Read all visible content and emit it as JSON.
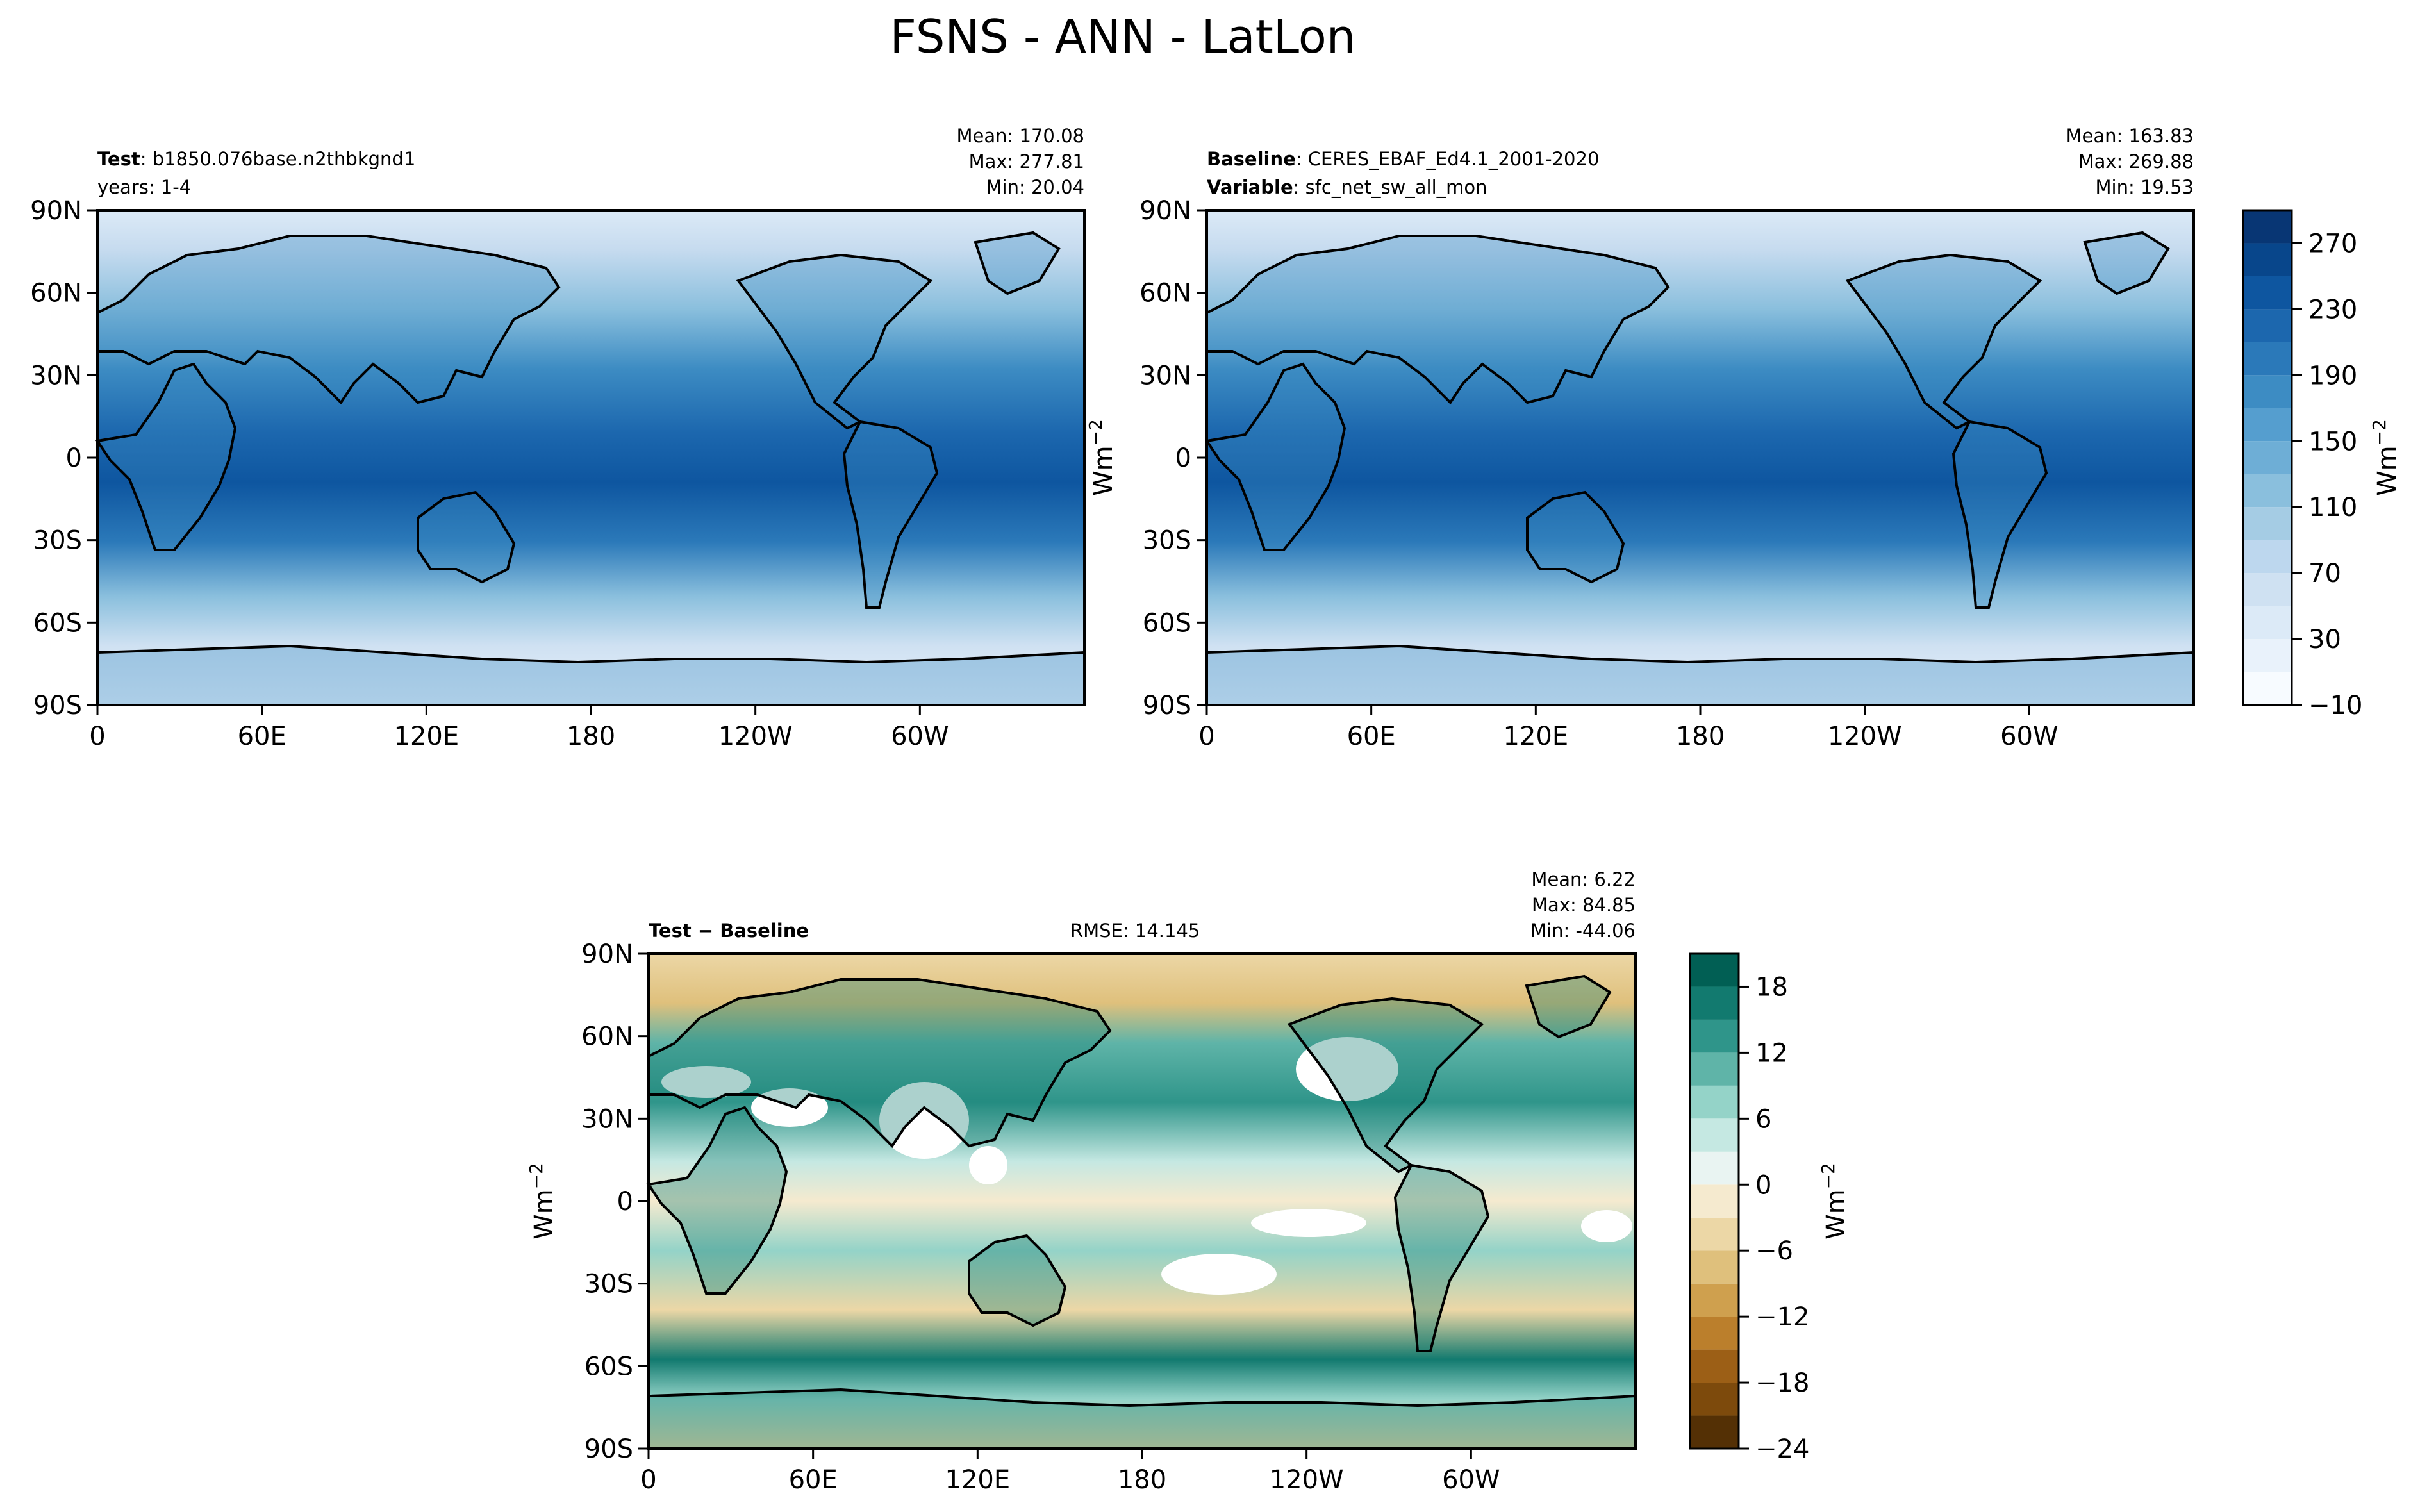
{
  "chart_data": {
    "type": "heatmap",
    "title": "FSNS - ANN - LatLon",
    "lat_ticks": [
      "90N",
      "60N",
      "30N",
      "0",
      "30S",
      "60S",
      "90S"
    ],
    "lon_ticks": [
      "0",
      "60E",
      "120E",
      "180",
      "120W",
      "60W"
    ],
    "unit": "Wm",
    "unit_exp": "−2",
    "panels": [
      {
        "name": "test",
        "label_bold": "Test",
        "label_text": ": b1850.076base.n2thbkgnd1",
        "label_line2": "years: 1-4",
        "mean": "Mean: 170.08",
        "max": "Max: 277.81",
        "min": "Min: 20.04"
      },
      {
        "name": "baseline",
        "label_bold": "Baseline",
        "label_text": ": CERES_EBAF_Ed4.1_2001-2020",
        "label_bold2": "Variable",
        "label_text2": ": sfc_net_sw_all_mon",
        "mean": "Mean: 163.83",
        "max": "Max: 269.88",
        "min": "Min: 19.53"
      },
      {
        "name": "diff",
        "label_bold": "Test − Baseline",
        "rmse": "RMSE: 14.145",
        "mean": "Mean:  6.22",
        "max": "Max: 84.85",
        "min": "Min: -44.06"
      }
    ],
    "colorbar_main": {
      "ticks": [
        "270",
        "230",
        "190",
        "150",
        "110",
        "70",
        "30",
        "−10"
      ],
      "levels": [
        -10,
        10,
        30,
        50,
        70,
        90,
        110,
        130,
        150,
        170,
        190,
        210,
        230,
        250,
        270,
        290
      ],
      "colors": [
        "#f7fbff",
        "#e9f2fb",
        "#dceaf7",
        "#cfe1f2",
        "#bdd7ee",
        "#a5cce4",
        "#8abfdd",
        "#6eaed6",
        "#559ecf",
        "#3d8cc3",
        "#2b79b9",
        "#1c67ae",
        "#0e56a0",
        "#08468b",
        "#083674"
      ]
    },
    "colorbar_diff": {
      "ticks": [
        "18",
        "12",
        "6",
        "0",
        "−6",
        "−12",
        "−18",
        "−24"
      ],
      "levels": [
        -24,
        -21,
        -18,
        -15,
        -12,
        -9,
        -6,
        -3,
        0,
        3,
        6,
        9,
        12,
        15,
        18,
        21
      ],
      "colors": [
        "#543005",
        "#7d4a0c",
        "#9c5f16",
        "#bb7f2c",
        "#cfa04e",
        "#dfc07c",
        "#ecd7a6",
        "#f5eacf",
        "#e9f4f2",
        "#c5e8e2",
        "#94d3c8",
        "#5fb4a8",
        "#2f958a",
        "#127a6f",
        "#015f54"
      ]
    }
  }
}
